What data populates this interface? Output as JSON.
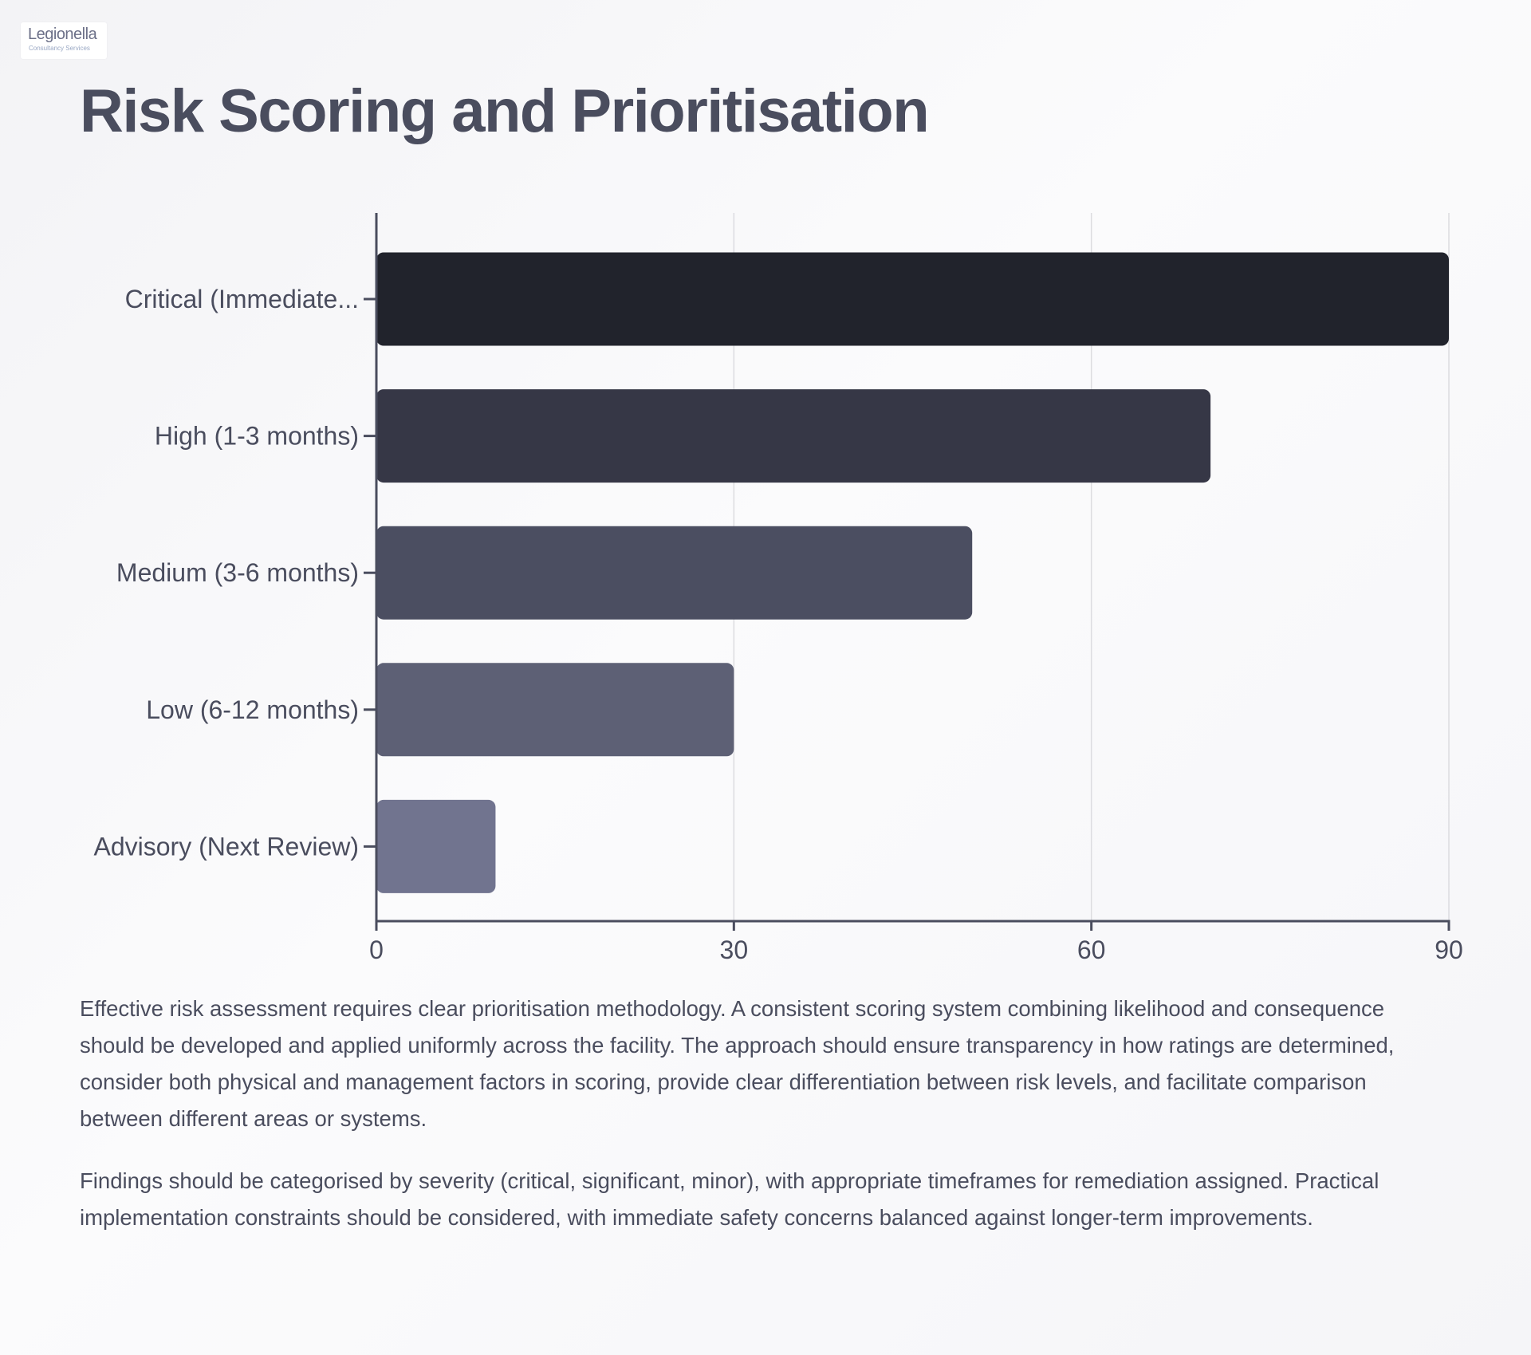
{
  "logo": {
    "wordmark": "Legionella",
    "subtitle": "Consultancy Services"
  },
  "header": {
    "title": "Risk Scoring and Prioritisation"
  },
  "chart_data": {
    "type": "bar",
    "orientation": "horizontal",
    "categories": [
      "Critical (Immediate...",
      "High (1-3 months)",
      "Medium (3-6 months)",
      "Low (6-12 months)",
      "Advisory (Next Review)"
    ],
    "values": [
      90,
      70,
      50,
      30,
      10
    ],
    "colors": [
      "#21232c",
      "#363746",
      "#4b4e61",
      "#5d6075",
      "#71748f"
    ],
    "xticks": [
      0,
      30,
      60,
      90
    ],
    "xlim": [
      0,
      90
    ],
    "grid": true,
    "legend": "none"
  },
  "body": {
    "paragraphs": [
      "Effective risk assessment requires clear prioritisation methodology. A consistent scoring system combining likelihood and consequence should be developed and applied uniformly across the facility. The approach should ensure transparency in how ratings are determined, consider both physical and management factors in scoring, provide clear differentiation between risk levels, and facilitate comparison between different areas or systems.",
      "Findings should be categorised by severity (critical, significant, minor), with appropriate timeframes for remediation assigned. Practical implementation constraints should be considered, with immediate safety concerns balanced against longer-term improvements."
    ]
  }
}
